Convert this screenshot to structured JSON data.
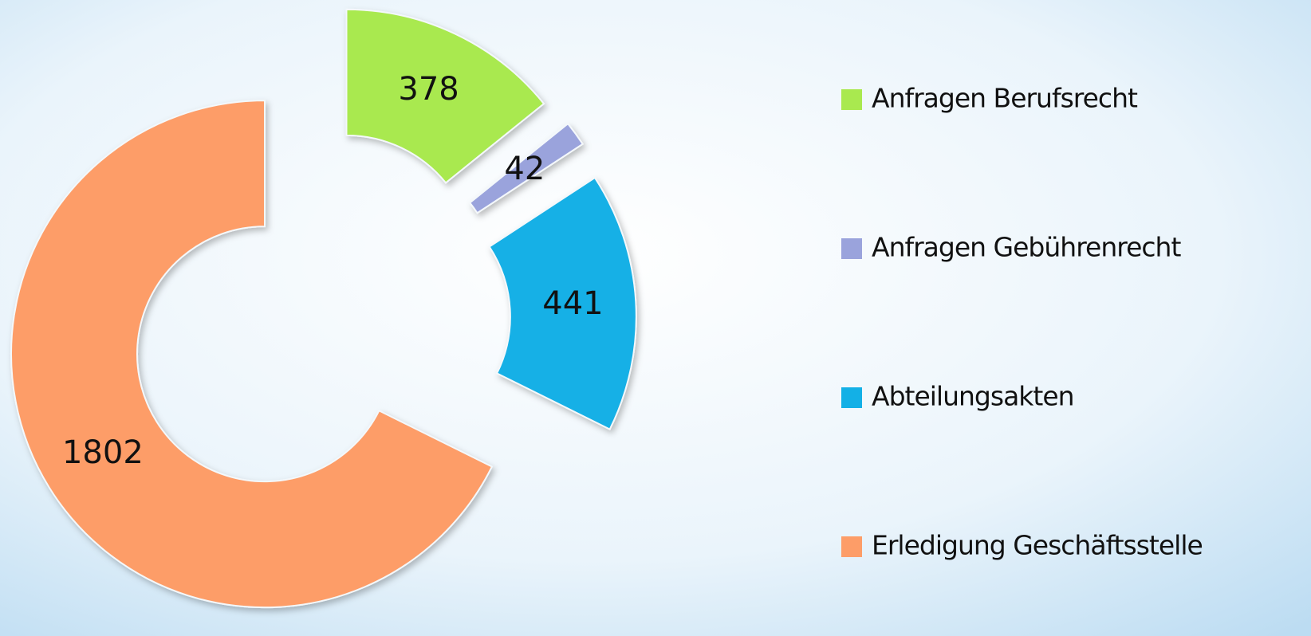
{
  "chart_data": {
    "type": "donut",
    "categories": [
      "Anfragen Berufsrecht",
      "Anfragen Gebührenrecht",
      "Abteilungsakten",
      "Erledigung Geschäftsstelle"
    ],
    "values": [
      378,
      42,
      441,
      1802
    ],
    "colors": [
      "#a9e94f",
      "#9aa3dc",
      "#13b0e6",
      "#fd9d68"
    ],
    "legend": "right"
  }
}
